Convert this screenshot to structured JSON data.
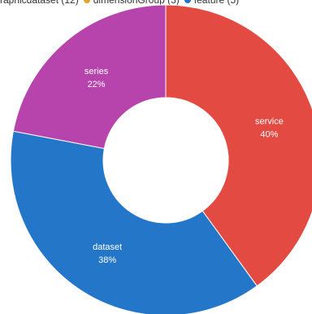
{
  "chart_data": {
    "type": "pie",
    "donut": true,
    "legend": {
      "position": "top-left",
      "entries": [
        {
          "text": "raphicdataset (12)",
          "color": "#e5e5e5"
        },
        {
          "text": "dimensionGroup (3)",
          "color": "#e0a526"
        },
        {
          "text": "feature (5)",
          "color": "#1f77c9"
        }
      ]
    },
    "slices": [
      {
        "name": "service",
        "percent_label": "40%",
        "value": 40,
        "color": "#e34b42"
      },
      {
        "name": "dataset",
        "percent_label": "38%",
        "value": 38,
        "color": "#2477c8"
      },
      {
        "name": "series",
        "percent_label": "22%",
        "value": 22,
        "color": "#b743ad"
      }
    ],
    "start_angle_deg": 0,
    "direction": "clockwise"
  }
}
